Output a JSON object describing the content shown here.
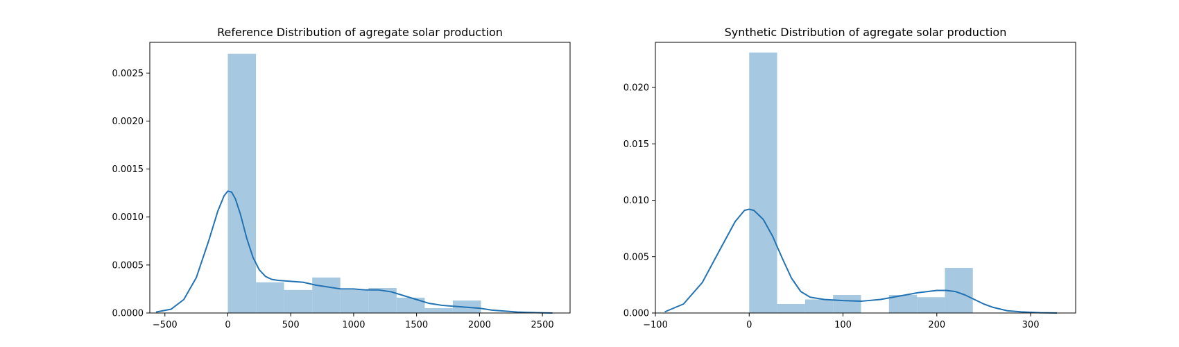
{
  "chart_data": [
    {
      "type": "histogram",
      "title": "Reference Distribution of agregate solar production",
      "xlabel": "",
      "ylabel": "",
      "xlim": [
        -620,
        2720
      ],
      "ylim": [
        0,
        0.00282
      ],
      "x_ticks": [
        -500,
        0,
        500,
        1000,
        1500,
        2000,
        2500
      ],
      "y_ticks": [
        0.0,
        0.0005,
        0.001,
        0.0015,
        0.002,
        0.0025
      ],
      "y_tick_labels": [
        "0.0000",
        "0.0005",
        "0.0010",
        "0.0015",
        "0.0020",
        "0.0025"
      ],
      "bar_color": "#a6c8e0",
      "line_color": "#2172b3",
      "bins": [
        {
          "start": 0,
          "end": 224,
          "density": 0.0027
        },
        {
          "start": 224,
          "end": 447,
          "density": 0.00032
        },
        {
          "start": 447,
          "end": 671,
          "density": 0.00024
        },
        {
          "start": 671,
          "end": 894,
          "density": 0.00037
        },
        {
          "start": 894,
          "end": 1118,
          "density": 0.00024
        },
        {
          "start": 1118,
          "end": 1341,
          "density": 0.00026
        },
        {
          "start": 1341,
          "end": 1565,
          "density": 0.00016
        },
        {
          "start": 1565,
          "end": 1788,
          "density": 5e-05
        },
        {
          "start": 1788,
          "end": 2012,
          "density": 0.00013
        }
      ],
      "kde": {
        "x": [
          -570,
          -450,
          -350,
          -250,
          -150,
          -80,
          -30,
          0,
          30,
          60,
          100,
          150,
          200,
          250,
          300,
          350,
          400,
          500,
          600,
          700,
          800,
          900,
          1000,
          1100,
          1200,
          1300,
          1400,
          1500,
          1600,
          1700,
          1800,
          1900,
          2000,
          2100,
          2200,
          2300,
          2400,
          2500,
          2580
        ],
        "y": [
          1e-05,
          4e-05,
          0.00014,
          0.00037,
          0.00076,
          0.00106,
          0.00122,
          0.00127,
          0.00126,
          0.00119,
          0.00103,
          0.00078,
          0.00058,
          0.00045,
          0.00038,
          0.00035,
          0.00034,
          0.00033,
          0.00032,
          0.00029,
          0.00027,
          0.00025,
          0.00025,
          0.00024,
          0.00024,
          0.00022,
          0.00018,
          0.00014,
          0.0001,
          8e-05,
          7e-05,
          6e-05,
          5e-05,
          3e-05,
          2e-05,
          1e-05,
          5e-06,
          2e-06,
          0.0
        ]
      }
    },
    {
      "type": "histogram",
      "title": "Synthetic Distribution of agregate solar production",
      "xlabel": "",
      "ylabel": "",
      "xlim": [
        -100,
        348
      ],
      "ylim": [
        0,
        0.024
      ],
      "x_ticks": [
        -100,
        0,
        100,
        200,
        300
      ],
      "y_ticks": [
        0.0,
        0.005,
        0.01,
        0.015,
        0.02
      ],
      "y_tick_labels": [
        "0.000",
        "0.005",
        "0.010",
        "0.015",
        "0.020"
      ],
      "bar_color": "#a6c8e0",
      "line_color": "#2172b3",
      "bins": [
        {
          "start": 0,
          "end": 29.8,
          "density": 0.0231
        },
        {
          "start": 29.8,
          "end": 59.6,
          "density": 0.0008
        },
        {
          "start": 59.6,
          "end": 89.4,
          "density": 0.0012
        },
        {
          "start": 89.4,
          "end": 119.2,
          "density": 0.0016
        },
        {
          "start": 119.2,
          "end": 149.0,
          "density": 0.0
        },
        {
          "start": 149.0,
          "end": 178.8,
          "density": 0.0016
        },
        {
          "start": 178.8,
          "end": 208.6,
          "density": 0.0014
        },
        {
          "start": 208.6,
          "end": 238.4,
          "density": 0.004
        }
      ],
      "kde": {
        "x": [
          -90,
          -70,
          -50,
          -30,
          -15,
          -5,
          0,
          5,
          15,
          25,
          35,
          45,
          55,
          65,
          80,
          100,
          120,
          140,
          160,
          180,
          200,
          210,
          220,
          230,
          240,
          250,
          260,
          275,
          290,
          310,
          328
        ],
        "y": [
          0.0001,
          0.0008,
          0.0027,
          0.0058,
          0.0081,
          0.0091,
          0.0092,
          0.0091,
          0.0083,
          0.0068,
          0.0049,
          0.0031,
          0.0019,
          0.0014,
          0.0012,
          0.0011,
          0.00105,
          0.0012,
          0.0015,
          0.0018,
          0.002,
          0.002,
          0.0019,
          0.0016,
          0.0012,
          0.0008,
          0.0005,
          0.0002,
          0.0001,
          2e-05,
          0.0
        ]
      }
    }
  ]
}
